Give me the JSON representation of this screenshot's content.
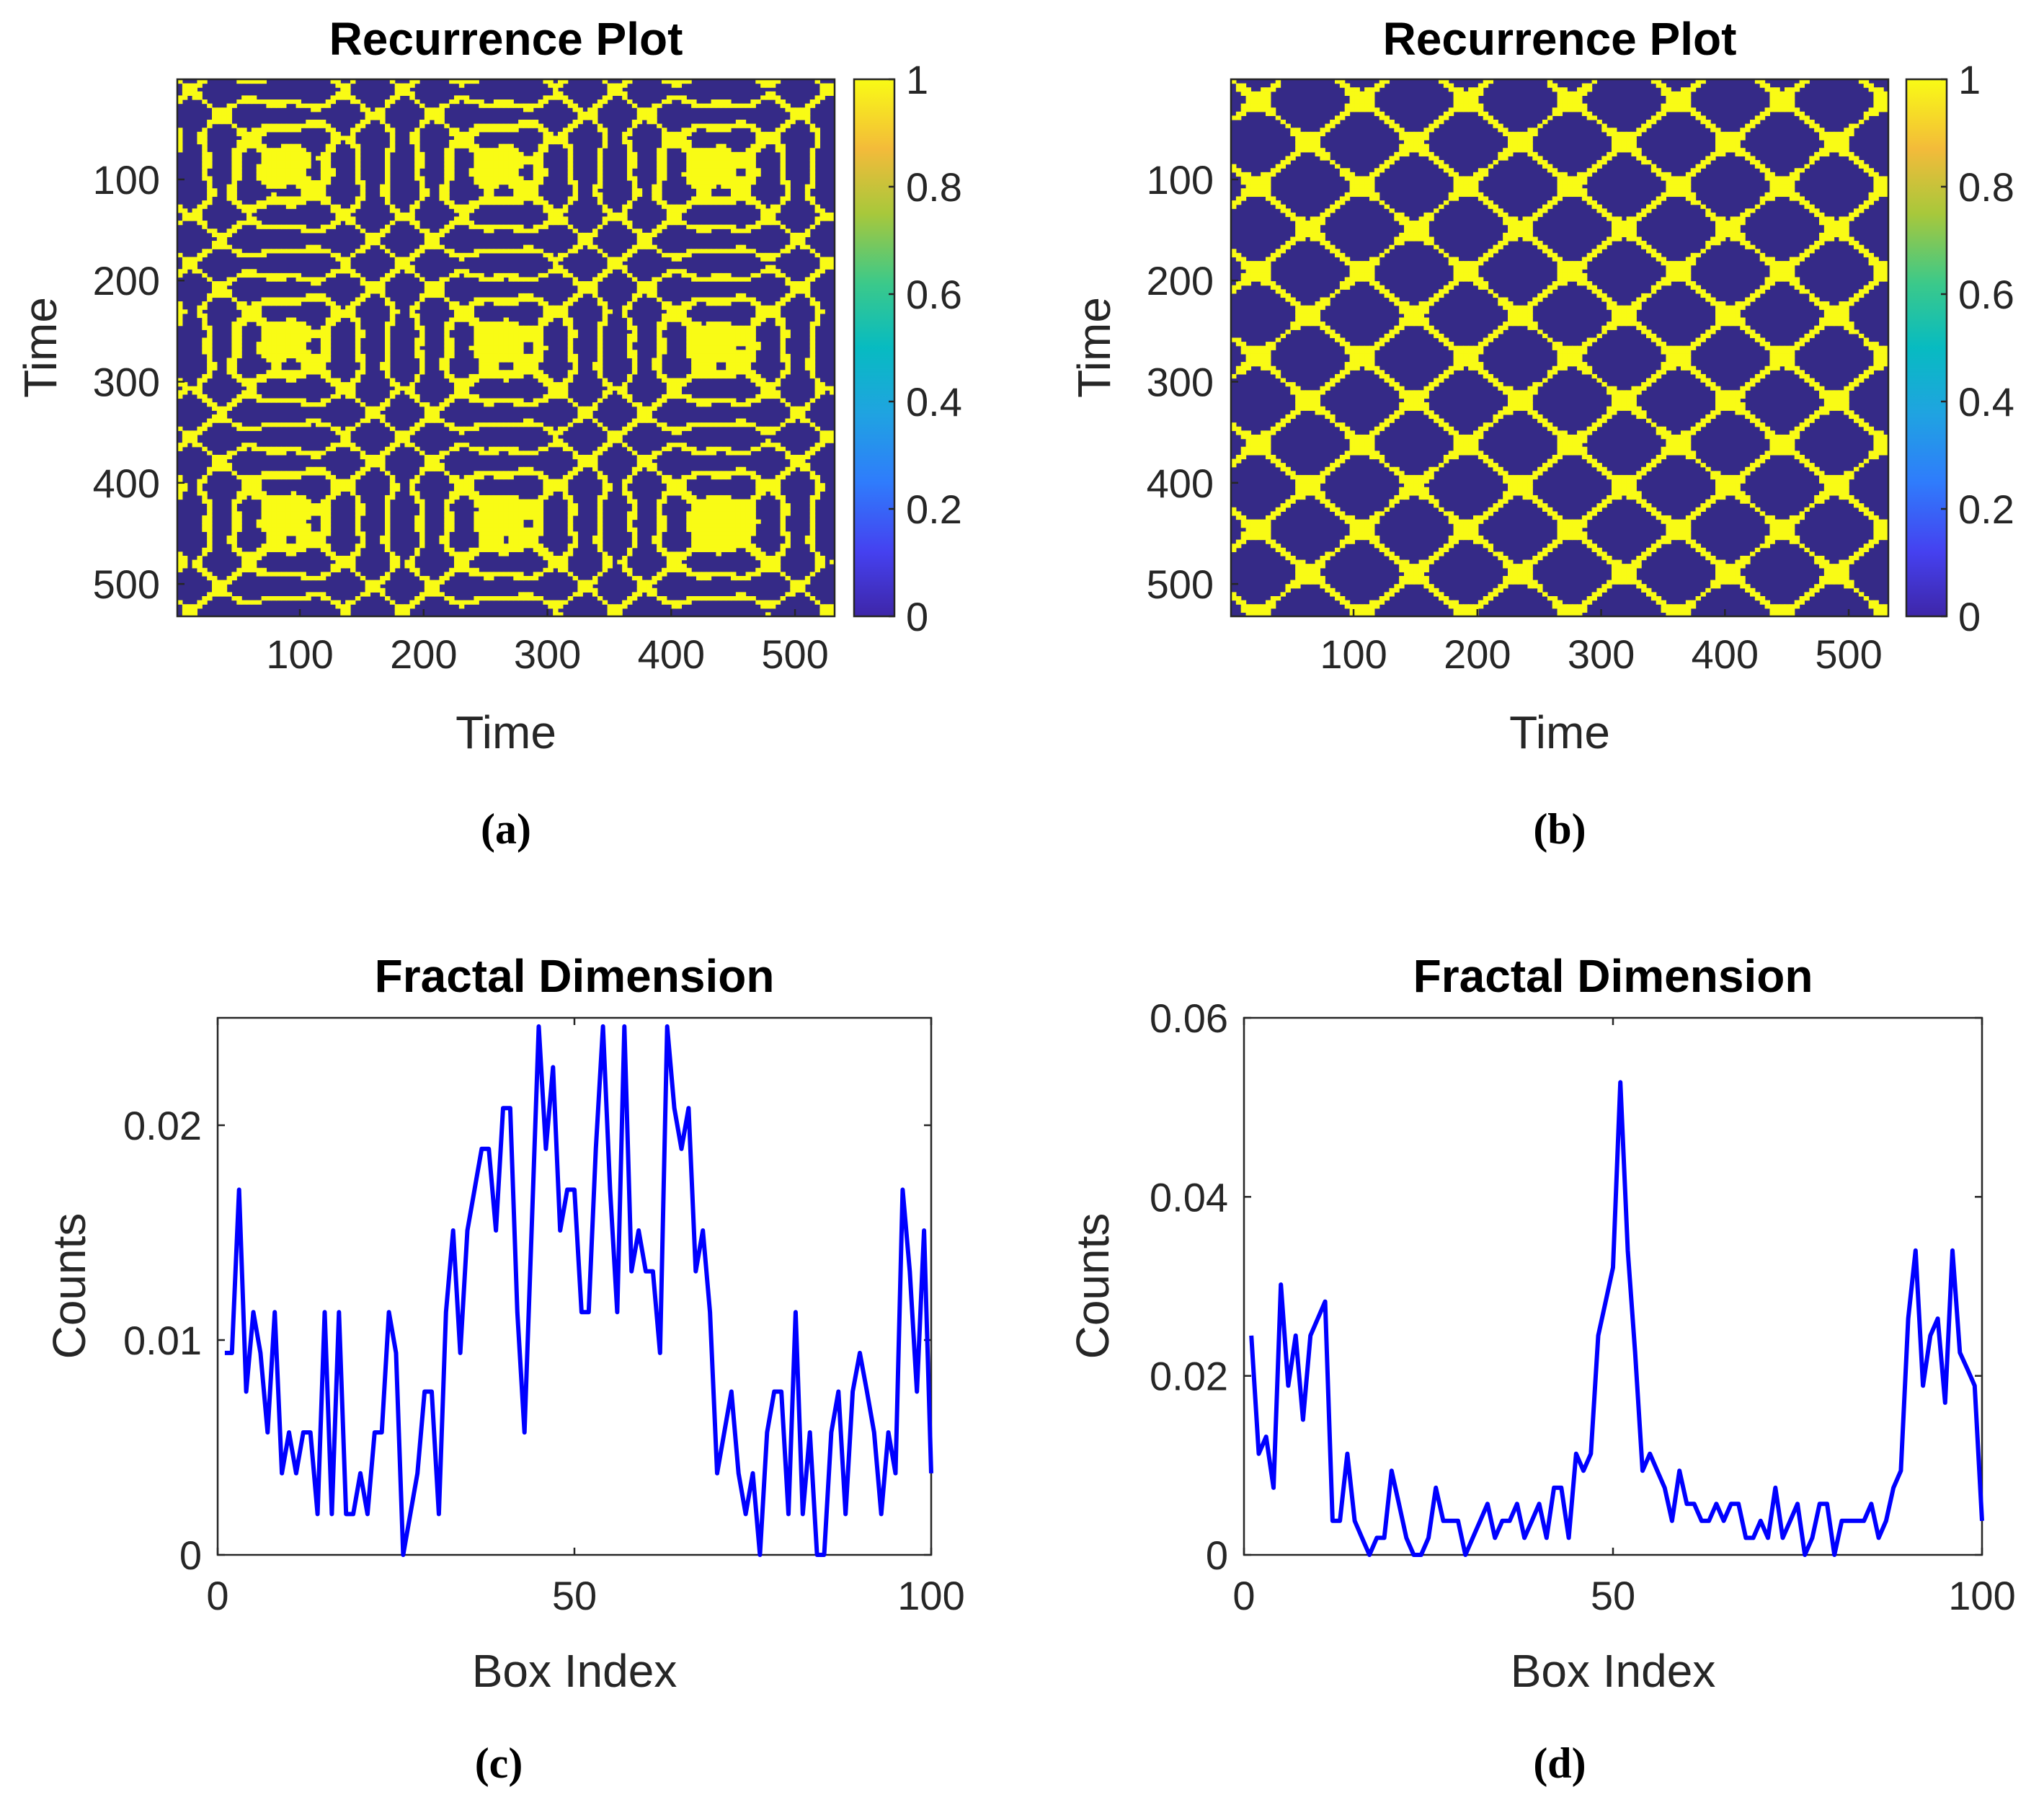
{
  "chart_data": [
    {
      "id": "a",
      "type": "heatmap",
      "title": "Recurrence Plot",
      "xlabel": "Time",
      "ylabel": "Time",
      "caption": "(a)",
      "xlim": [
        1,
        532
      ],
      "ylim": [
        1,
        532
      ],
      "xticks": [
        100,
        200,
        300,
        400,
        500
      ],
      "yticks": [
        100,
        200,
        300,
        400,
        500
      ],
      "colorbar": {
        "ticks": [
          0,
          0.2,
          0.4,
          0.6,
          0.8,
          1
        ]
      },
      "pattern": {
        "periods": [
          43,
          57
        ],
        "threshold": 0.3
      }
    },
    {
      "id": "b",
      "type": "heatmap",
      "title": "Recurrence Plot",
      "xlabel": "Time",
      "ylabel": "Time",
      "caption": "(b)",
      "xlim": [
        1,
        532
      ],
      "ylim": [
        1,
        532
      ],
      "xticks": [
        100,
        200,
        300,
        400,
        500
      ],
      "yticks": [
        100,
        200,
        300,
        400,
        500
      ],
      "colorbar": {
        "ticks": [
          0,
          0.2,
          0.4,
          0.6,
          0.8,
          1
        ]
      },
      "pattern": {
        "periods": [
          85
        ],
        "threshold": 0.25
      }
    },
    {
      "id": "c",
      "type": "line",
      "title": "Fractal Dimension",
      "xlabel": "Box Index",
      "ylabel": "Counts",
      "caption": "(c)",
      "xlim": [
        0,
        100
      ],
      "ylim": [
        0,
        0.025
      ],
      "xticks": [
        0,
        50,
        100
      ],
      "yticks": [
        0,
        0.01,
        0.02
      ],
      "color": "#0000ff",
      "x": [
        1,
        2,
        3,
        4,
        5,
        6,
        7,
        8,
        9,
        10,
        11,
        12,
        13,
        14,
        15,
        16,
        17,
        18,
        19,
        20,
        21,
        22,
        23,
        24,
        25,
        26,
        27,
        28,
        29,
        30,
        31,
        32,
        33,
        34,
        35,
        36,
        37,
        38,
        39,
        40,
        41,
        42,
        43,
        44,
        45,
        46,
        47,
        48,
        49,
        50,
        51,
        52,
        53,
        54,
        55,
        56,
        57,
        58,
        59,
        60,
        61,
        62,
        63,
        64,
        65,
        66,
        67,
        68,
        69,
        70,
        71,
        72,
        73,
        74,
        75,
        76,
        77,
        78,
        79,
        80,
        81,
        82,
        83,
        84,
        85,
        86,
        87,
        88,
        89,
        90,
        91,
        92,
        93,
        94,
        95,
        96,
        97,
        98,
        99,
        100
      ],
      "y": [
        0.0094,
        0.0094,
        0.017,
        0.0076,
        0.0113,
        0.0094,
        0.0057,
        0.0113,
        0.0038,
        0.0057,
        0.0038,
        0.0057,
        0.0057,
        0.0019,
        0.0113,
        0.0019,
        0.0113,
        0.0019,
        0.0019,
        0.0038,
        0.0019,
        0.0057,
        0.0057,
        0.0113,
        0.0094,
        0.0,
        0.0019,
        0.0038,
        0.0076,
        0.0076,
        0.0019,
        0.0113,
        0.0151,
        0.0094,
        0.0151,
        0.017,
        0.0189,
        0.0189,
        0.0151,
        0.0208,
        0.0208,
        0.0113,
        0.0057,
        0.0151,
        0.0246,
        0.0189,
        0.0227,
        0.0151,
        0.017,
        0.017,
        0.0113,
        0.0113,
        0.0189,
        0.0246,
        0.017,
        0.0113,
        0.0246,
        0.0132,
        0.0151,
        0.0132,
        0.0132,
        0.0094,
        0.0246,
        0.0208,
        0.0189,
        0.0208,
        0.0132,
        0.0151,
        0.0113,
        0.0038,
        0.0057,
        0.0076,
        0.0038,
        0.0019,
        0.0038,
        0.0,
        0.0057,
        0.0076,
        0.0076,
        0.0019,
        0.0113,
        0.0019,
        0.0057,
        0.0,
        0.0,
        0.0057,
        0.0076,
        0.0019,
        0.0076,
        0.0094,
        0.0076,
        0.0057,
        0.0019,
        0.0057,
        0.0038,
        0.017,
        0.0132,
        0.0076,
        0.0151,
        0.0038
      ]
    },
    {
      "id": "d",
      "type": "line",
      "title": "Fractal Dimension",
      "xlabel": "Box Index",
      "ylabel": "Counts",
      "caption": "(d)",
      "xlim": [
        0,
        100
      ],
      "ylim": [
        0,
        0.06
      ],
      "xticks": [
        0,
        50,
        100
      ],
      "yticks": [
        0,
        0.02,
        0.04,
        0.06
      ],
      "color": "#0000ff",
      "x": [
        1,
        2,
        3,
        4,
        5,
        6,
        7,
        8,
        9,
        10,
        11,
        12,
        13,
        14,
        15,
        16,
        17,
        18,
        19,
        20,
        21,
        22,
        23,
        24,
        25,
        26,
        27,
        28,
        29,
        30,
        31,
        32,
        33,
        34,
        35,
        36,
        37,
        38,
        39,
        40,
        41,
        42,
        43,
        44,
        45,
        46,
        47,
        48,
        49,
        50,
        51,
        52,
        53,
        54,
        55,
        56,
        57,
        58,
        59,
        60,
        61,
        62,
        63,
        64,
        65,
        66,
        67,
        68,
        69,
        70,
        71,
        72,
        73,
        74,
        75,
        76,
        77,
        78,
        79,
        80,
        81,
        82,
        83,
        84,
        85,
        86,
        87,
        88,
        89,
        90,
        91,
        92,
        93,
        94,
        95,
        96,
        97,
        98,
        99,
        100
      ],
      "y": [
        0.0245,
        0.0113,
        0.0132,
        0.0075,
        0.0302,
        0.0189,
        0.0245,
        0.0151,
        0.0245,
        0.0264,
        0.0283,
        0.0038,
        0.0038,
        0.0113,
        0.0038,
        0.0019,
        0.0,
        0.0019,
        0.0019,
        0.0094,
        0.0057,
        0.0019,
        0.0,
        0.0,
        0.0019,
        0.0075,
        0.0038,
        0.0038,
        0.0038,
        0.0,
        0.0019,
        0.0038,
        0.0057,
        0.0019,
        0.0038,
        0.0038,
        0.0057,
        0.0019,
        0.0038,
        0.0057,
        0.0019,
        0.0075,
        0.0075,
        0.0019,
        0.0113,
        0.0094,
        0.0113,
        0.0245,
        0.0283,
        0.0321,
        0.0528,
        0.034,
        0.0226,
        0.0094,
        0.0113,
        0.0094,
        0.0075,
        0.0038,
        0.0094,
        0.0057,
        0.0057,
        0.0038,
        0.0038,
        0.0057,
        0.0038,
        0.0057,
        0.0057,
        0.0019,
        0.0019,
        0.0038,
        0.0019,
        0.0075,
        0.0019,
        0.0038,
        0.0057,
        0.0,
        0.0019,
        0.0057,
        0.0057,
        0.0,
        0.0038,
        0.0038,
        0.0038,
        0.0038,
        0.0057,
        0.0019,
        0.0038,
        0.0075,
        0.0094,
        0.0264,
        0.034,
        0.0189,
        0.0245,
        0.0264,
        0.017,
        0.034,
        0.0226,
        0.0208,
        0.0189,
        0.0038
      ]
    }
  ]
}
